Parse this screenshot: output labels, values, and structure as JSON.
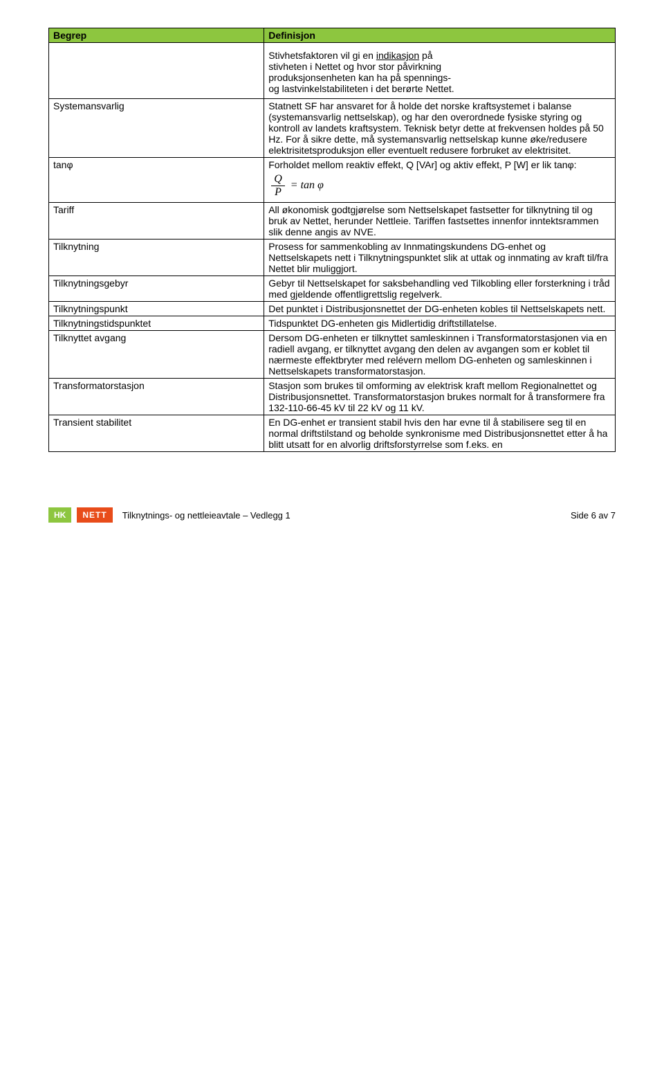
{
  "colors": {
    "header_bg": "#8dc63f",
    "border": "#000000",
    "text": "#000000",
    "logo_hk_bg": "#8dc63f",
    "logo_nett_bg": "#e84c1a",
    "logo_text": "#ffffff"
  },
  "header": {
    "term": "Begrep",
    "definition": "Definisjon"
  },
  "blank_def_lines": [
    "Stivhetsfaktoren vil gi en <u>indikasjon</u> på",
    "stivheten i Nettet og hvor stor påvirkning",
    "produksjonsenheten kan ha på spennings-",
    "og lastvinkelstabiliteten i det berørte Nettet."
  ],
  "rows": [
    {
      "term": "Systemansvarlig",
      "def": "Statnett SF har ansvaret for å holde det norske kraftsystemet i balanse (systemansvarlig nettselskap), og har den overordnede fysiske styring og kontroll av landets kraftsystem. Teknisk betyr dette at frekvensen holdes på 50 Hz. For å sikre dette, må systemansvarlig nettselskap kunne øke/redusere elektrisitetsproduksjon eller eventuelt redusere forbruket av elektrisitet."
    },
    {
      "term": "tanφ",
      "def_pre": "Forholdet mellom reaktiv effekt, Q [VAr] og aktiv effekt, P [W] er lik tanφ:",
      "formula": {
        "num": "Q",
        "den": "P",
        "rhs": "= tan φ"
      }
    },
    {
      "term": "Tariff",
      "def": "All økonomisk godtgjørelse som Nettselskapet fastsetter for tilknytning til og bruk av Nettet, herunder Nettleie. Tariffen fastsettes innenfor inntektsrammen slik denne angis av NVE."
    },
    {
      "term": "Tilknytning",
      "def": "Prosess for sammenkobling av Innmatingskundens DG-enhet og Nettselskapets nett i Tilknytningspunktet slik at uttak og innmating av kraft til/fra Nettet blir muliggjort."
    },
    {
      "term": "Tilknytningsgebyr",
      "def": "Gebyr til Nettselskapet for saksbehandling ved Tilkobling eller forsterkning i tråd med gjeldende offentligrettslig regelverk."
    },
    {
      "term": "Tilknytningspunkt",
      "def": "Det punktet i Distribusjonsnettet der DG-enheten kobles til Nettselskapets nett."
    },
    {
      "term": "Tilknytningstidspunktet",
      "def": "Tidspunktet DG-enheten gis Midlertidig driftstillatelse."
    },
    {
      "term": "Tilknyttet avgang",
      "def": "Dersom DG-enheten er tilknyttet samleskinnen i Transformatorstasjonen via en radiell avgang, er tilknyttet avgang den delen av avgangen som er koblet til nærmeste effektbryter med relévern mellom DG-enheten og samleskinnen i Nettselskapets transformatorstasjon."
    },
    {
      "term": "Transformatorstasjon",
      "def": "Stasjon som brukes til omforming av elektrisk kraft mellom Regionalnettet og Distribusjonsnettet. Transformatorstasjon brukes normalt for å transformere fra 132-110-66-45 kV til 22 kV og 11 kV."
    },
    {
      "term": "Transient stabilitet",
      "def": "En DG-enhet er transient stabil hvis den har evne til å stabilisere seg til en normal driftstilstand og beholde synkronisme med Distribusjonsnettet etter å ha blitt utsatt for en alvorlig driftsforstyrrelse som f.eks. en"
    }
  ],
  "footer": {
    "logo_hk": "HK",
    "logo_nett": "NETT",
    "text": "Tilknytnings- og nettleieavtale – Vedlegg 1",
    "page": "Side 6 av 7"
  }
}
